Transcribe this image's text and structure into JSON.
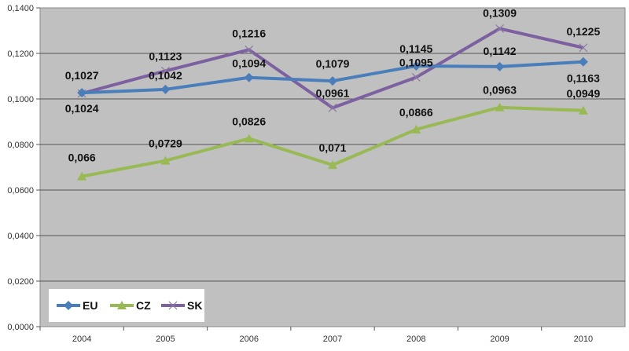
{
  "chart_data": {
    "type": "line",
    "title": "",
    "xlabel": "",
    "ylabel": "",
    "categories": [
      "2004",
      "2005",
      "2006",
      "2007",
      "2008",
      "2009",
      "2010"
    ],
    "ylim": [
      0,
      0.14
    ],
    "yticks": [
      0,
      0.02,
      0.04,
      0.06,
      0.08,
      0.1,
      0.12,
      0.14
    ],
    "ytick_labels": [
      "0,0000",
      "0,0200",
      "0,0400",
      "0,0600",
      "0,0800",
      "0,1000",
      "0,1200",
      "0,1400"
    ],
    "grid": true,
    "legend_position": "bottom-left",
    "series": [
      {
        "name": "EU",
        "color": "#4a7ebb",
        "marker": "diamond",
        "values": [
          0.1027,
          0.1042,
          0.1094,
          0.1079,
          0.1145,
          0.1142,
          0.1163
        ],
        "labels": [
          "0,1027",
          "0,1042",
          "0,1094",
          "0,1079",
          "0,1145",
          "0,1142",
          "0,1163"
        ]
      },
      {
        "name": "CZ",
        "color": "#98b954",
        "marker": "triangle",
        "values": [
          0.066,
          0.0729,
          0.0826,
          0.071,
          0.0866,
          0.0963,
          0.0949
        ],
        "labels": [
          "0,066",
          "0,0729",
          "0,0826",
          "0,071",
          "0,0866",
          "0,0963",
          "0,0949"
        ]
      },
      {
        "name": "SK",
        "color": "#7d60a0",
        "marker": "x",
        "values": [
          0.1024,
          0.1123,
          0.1216,
          0.0961,
          0.1095,
          0.1309,
          0.1225
        ],
        "labels": [
          "0,1024",
          "0,1123",
          "0,1216",
          "0,0961",
          "0,1095",
          "0,1309",
          "0,1225"
        ]
      }
    ]
  }
}
